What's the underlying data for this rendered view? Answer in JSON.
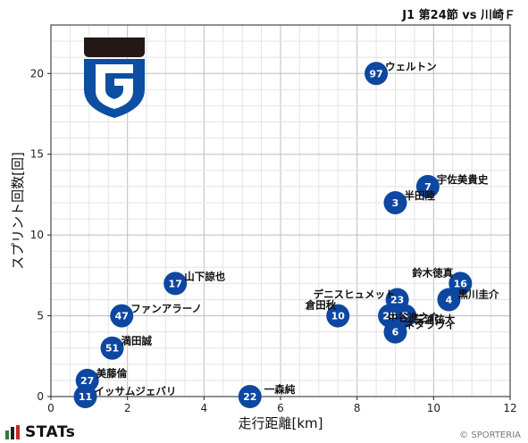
{
  "header": {
    "title": "J1 第24節 vs 川崎Ｆ"
  },
  "footer": {
    "brand": "STATs",
    "copyright": "© SPORTERIA"
  },
  "colors": {
    "point": "#0d47a1",
    "grid_major": "#bdbdbd",
    "grid_minor": "#e3e3e3",
    "stats_green": "#2e7d32",
    "stats_red": "#c62828",
    "stats_dark": "#222222",
    "logo_black": "#231815",
    "logo_blue": "#0b4ea2"
  },
  "logo": {
    "name": "gamba-osaka-crest"
  },
  "chart_data": {
    "type": "scatter",
    "title": "",
    "xlabel": "走行距離[km]",
    "ylabel": "スプリント回数[回]",
    "xlim": [
      0,
      12
    ],
    "ylim": [
      0,
      23
    ],
    "xticks": [
      "0",
      "2",
      "4",
      "6",
      "8",
      "10",
      "12"
    ],
    "yticks": [
      "0",
      "5",
      "10",
      "15",
      "20"
    ],
    "grid": true,
    "points": [
      {
        "number": "97",
        "name": "ウェルトン",
        "x": 8.5,
        "y": 20
      },
      {
        "number": "7",
        "name": "宇佐美貴史",
        "x": 9.85,
        "y": 13
      },
      {
        "number": "3",
        "name": "半田陸",
        "x": 9.0,
        "y": 12
      },
      {
        "number": "16",
        "name": "鈴木徳真",
        "x": 10.7,
        "y": 7
      },
      {
        "number": "4",
        "name": "黒川圭介",
        "x": 10.4,
        "y": 6
      },
      {
        "number": "23",
        "name": "デニスヒュメット",
        "x": 9.05,
        "y": 6
      },
      {
        "number": "5",
        "name": "三浦弦太",
        "x": 9.25,
        "y": 5
      },
      {
        "number": "20",
        "name": "中谷進之介",
        "x": 8.85,
        "y": 5
      },
      {
        "number": "10",
        "name": "倉田秋",
        "x": 7.5,
        "y": 5
      },
      {
        "number": "6",
        "name": "ネタラヴィ",
        "x": 9.0,
        "y": 4
      },
      {
        "number": "17",
        "name": "山下諒也",
        "x": 3.25,
        "y": 7
      },
      {
        "number": "47",
        "name": "ファンアラーノ",
        "x": 1.85,
        "y": 5
      },
      {
        "number": "51",
        "name": "満田誠",
        "x": 1.6,
        "y": 3
      },
      {
        "number": "27",
        "name": "美藤倫",
        "x": 0.95,
        "y": 1
      },
      {
        "number": "11",
        "name": "イッサムジェバリ",
        "x": 0.9,
        "y": 0
      },
      {
        "number": "22",
        "name": "一森純",
        "x": 5.2,
        "y": 0
      }
    ]
  }
}
